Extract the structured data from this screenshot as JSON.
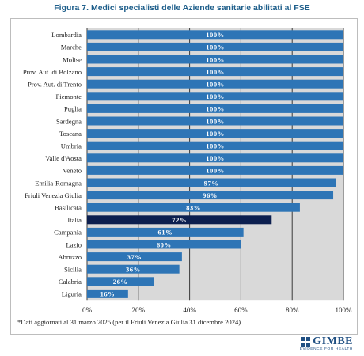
{
  "figure_title": "Figura 7. Medici specialisti delle Aziende sanitarie abilitati al FSE",
  "footnote": "*Dati aggiornati al 31 marzo 2025 (per il Friuli Venezia Giulia 31 dicembre 2024)",
  "logo": {
    "name": "GIMBE",
    "tagline": "EVIDENCE FOR HEALTH",
    "color": "#1f4f82"
  },
  "colors": {
    "bar": "#2e75b6",
    "highlight": "#0c1f4f",
    "plot_background": "#d9d9d9",
    "gridline": "#3a3a3a",
    "label_text": "#ffffff"
  },
  "chart_data": {
    "type": "bar",
    "orientation": "horizontal",
    "title": "Figura 7. Medici specialisti delle Aziende sanitarie abilitati al FSE",
    "categories": [
      "Lombardia",
      "Marche",
      "Molise",
      "Prov. Aut. di Bolzano",
      "Prov. Aut. di Trento",
      "Piemonte",
      "Puglia",
      "Sardegna",
      "Toscana",
      "Umbria",
      "Valle d'Aosta",
      "Veneto",
      "Emilia-Romagna",
      "Friuli Venezia Giulia",
      "Basilicata",
      "Italia",
      "Campania",
      "Lazio",
      "Abruzzo",
      "Sicilia",
      "Calabria",
      "Liguria"
    ],
    "values": [
      100,
      100,
      100,
      100,
      100,
      100,
      100,
      100,
      100,
      100,
      100,
      100,
      97,
      96,
      83,
      72,
      61,
      60,
      37,
      36,
      26,
      16
    ],
    "data_labels": [
      "100%",
      "100%",
      "100%",
      "100%",
      "100%",
      "100%",
      "100%",
      "100%",
      "100%",
      "100%",
      "100%",
      "100%",
      "97%",
      "96%",
      "83%",
      "72%",
      "61%",
      "60%",
      "37%",
      "36%",
      "26%",
      "16%"
    ],
    "highlight_category": "Italia",
    "xlim": [
      0,
      100
    ],
    "x_ticks": [
      "0%",
      "20%",
      "40%",
      "60%",
      "80%",
      "100%"
    ],
    "x_tick_values": [
      0,
      20,
      40,
      60,
      80,
      100
    ],
    "xlabel": "",
    "ylabel": "",
    "grid": "vertical",
    "legend": "none"
  }
}
